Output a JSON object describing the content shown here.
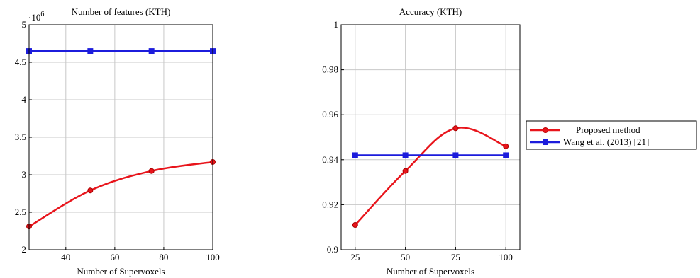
{
  "chart_data": [
    {
      "type": "line",
      "title": "Number of features (KTH)",
      "xlabel": "Number of Supervoxels",
      "ylabel": "",
      "scale_note": "·10",
      "scale_exp": "6",
      "xlim": [
        25,
        100
      ],
      "ylim": [
        2,
        5
      ],
      "xticks": [
        40,
        60,
        80,
        100
      ],
      "yticks": [
        2,
        2.5,
        3,
        3.5,
        4,
        4.5,
        5
      ],
      "ytick_labels": [
        "2",
        "2.5",
        "3",
        "3.5",
        "4",
        "4.5",
        "5"
      ],
      "grid": true,
      "series": [
        {
          "name": "Proposed method",
          "color": "#e8141b",
          "marker": "circle",
          "x": [
            25,
            50,
            75,
            100
          ],
          "y": [
            2.31,
            2.79,
            3.05,
            3.17
          ]
        },
        {
          "name": "Wang et al. (2013) [21]",
          "color": "#1c1cdc",
          "marker": "square",
          "x": [
            25,
            50,
            75,
            100
          ],
          "y": [
            4.65,
            4.65,
            4.65,
            4.65
          ]
        }
      ]
    },
    {
      "type": "line",
      "title": "Accuracy (KTH)",
      "xlabel": "Number of Supervoxels",
      "ylabel": "",
      "xlim": [
        18,
        107
      ],
      "ylim": [
        0.9,
        1
      ],
      "xticks": [
        25,
        50,
        75,
        100
      ],
      "yticks": [
        0.9,
        0.92,
        0.94,
        0.96,
        0.98,
        1
      ],
      "ytick_labels": [
        "0.9",
        "0.92",
        "0.94",
        "0.96",
        "0.98",
        "1"
      ],
      "grid": true,
      "legend": "outside-right",
      "series": [
        {
          "name": "Proposed method",
          "color": "#e8141b",
          "marker": "circle",
          "x": [
            25,
            50,
            75,
            100
          ],
          "y": [
            0.911,
            0.935,
            0.954,
            0.946
          ]
        },
        {
          "name": "Wang et al. (2013) [21]",
          "color": "#1c1cdc",
          "marker": "square",
          "x": [
            25,
            50,
            75,
            100
          ],
          "y": [
            0.942,
            0.942,
            0.942,
            0.942
          ]
        }
      ]
    }
  ]
}
